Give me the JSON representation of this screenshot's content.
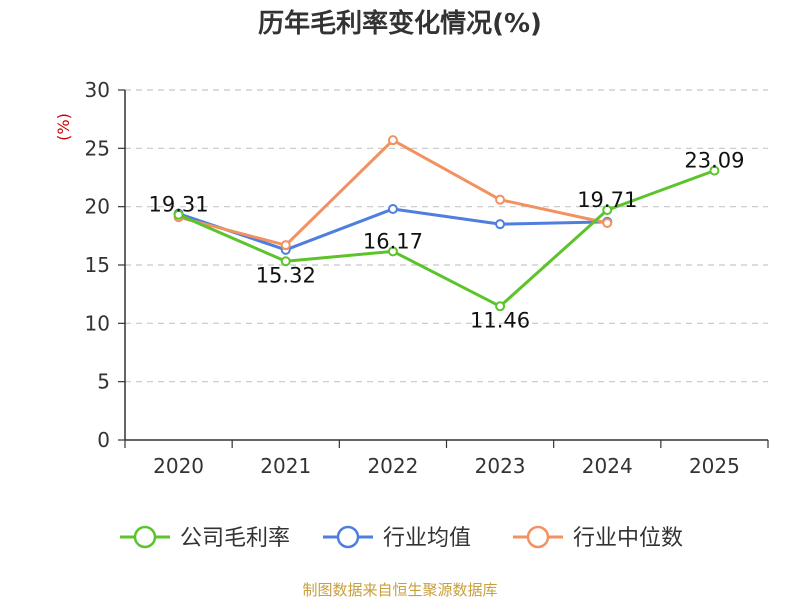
{
  "chart_data": {
    "type": "line",
    "title": "历年毛利率变化情况(%)",
    "ylabel": "(%)",
    "categories": [
      "2020",
      "2021",
      "2022",
      "2023",
      "2024",
      "2025"
    ],
    "ylim": [
      0,
      30
    ],
    "yticks": [
      0,
      5,
      10,
      15,
      20,
      25,
      30
    ],
    "grid": true,
    "legend_position": "bottom",
    "series": [
      {
        "name": "公司毛利率",
        "color": "#5bc42b",
        "values": [
          19.31,
          15.32,
          16.17,
          11.46,
          19.71,
          23.09
        ],
        "labels": [
          "19.31",
          "15.32",
          "16.17",
          "11.46",
          "19.71",
          "23.09"
        ]
      },
      {
        "name": "行业均值",
        "color": "#4f7fde",
        "values": [
          19.4,
          16.3,
          19.8,
          18.5,
          18.7,
          null
        ]
      },
      {
        "name": "行业中位数",
        "color": "#f39160",
        "values": [
          19.1,
          16.7,
          25.7,
          20.6,
          18.6,
          null
        ]
      }
    ]
  },
  "footer": {
    "source": "制图数据来自恒生聚源数据库"
  }
}
